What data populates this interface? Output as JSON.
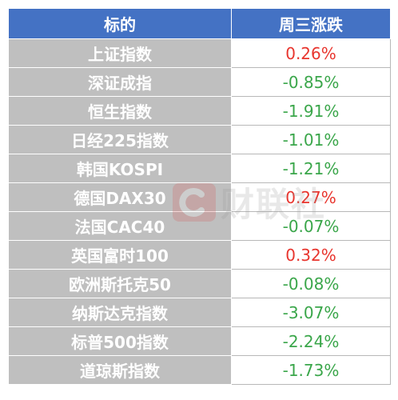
{
  "table": {
    "headers": [
      "标的",
      "周三涨跌"
    ],
    "rows": [
      {
        "name": "上证指数",
        "change": "0.26%",
        "direction": "up"
      },
      {
        "name": "深证成指",
        "change": "-0.85%",
        "direction": "down"
      },
      {
        "name": "恒生指数",
        "change": "-1.91%",
        "direction": "down"
      },
      {
        "name": "日经225指数",
        "change": "-1.01%",
        "direction": "down"
      },
      {
        "name": "韩国KOSPI",
        "change": "-1.21%",
        "direction": "down"
      },
      {
        "name": "德国DAX30",
        "change": "0.27%",
        "direction": "up"
      },
      {
        "name": "法国CAC40",
        "change": "-0.07%",
        "direction": "down"
      },
      {
        "name": "英国富时100",
        "change": "0.32%",
        "direction": "up"
      },
      {
        "name": "欧洲斯托克50",
        "change": "-0.08%",
        "direction": "down"
      },
      {
        "name": "纳斯达克指数",
        "change": "-3.07%",
        "direction": "down"
      },
      {
        "name": "标普500指数",
        "change": "-2.24%",
        "direction": "down"
      },
      {
        "name": "道琼斯指数",
        "change": "-1.73%",
        "direction": "down"
      }
    ]
  },
  "colors": {
    "header_bg": "#4472c4",
    "name_bg": "#bfbfbf",
    "up": "#e8352e",
    "down": "#3aa64a"
  },
  "watermark": {
    "text": "财联社",
    "icon": "cls-logo-icon"
  }
}
